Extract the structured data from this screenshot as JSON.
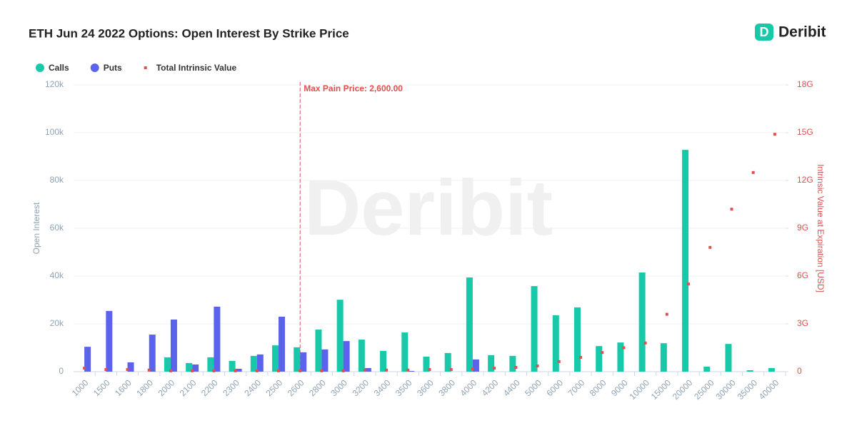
{
  "brand": "Deribit",
  "chart_data": {
    "type": "bar",
    "title": "ETH Jun 24 2022 Options: Open Interest By Strike Price",
    "y_label": "Open Interest",
    "y2_label": "Intrinsic Value at Expiration [USD]",
    "annotation": {
      "text": "Max Pain Price: 2,600.00",
      "x": 2600
    },
    "categories": [
      "1000",
      "1500",
      "1600",
      "1800",
      "2000",
      "2100",
      "2200",
      "2300",
      "2400",
      "2500",
      "2600",
      "2800",
      "3000",
      "3200",
      "3400",
      "3500",
      "3600",
      "3800",
      "4000",
      "4200",
      "4400",
      "5000",
      "6000",
      "7000",
      "8000",
      "9000",
      "10000",
      "15000",
      "20000",
      "25000",
      "30000",
      "35000",
      "40000"
    ],
    "series": [
      {
        "name": "Calls",
        "color": "#17c9a8",
        "type": "bar",
        "values": [
          0,
          0,
          0,
          0,
          6000,
          3600,
          6000,
          4500,
          6600,
          11000,
          10200,
          17600,
          30100,
          13400,
          8700,
          16400,
          6300,
          7800,
          39400,
          6900,
          6600,
          35800,
          23600,
          26900,
          10700,
          12200,
          41500,
          11900,
          92800,
          2100,
          11600,
          600,
          1500
        ]
      },
      {
        "name": "Puts",
        "color": "#5b63ea",
        "type": "bar",
        "values": [
          10400,
          25400,
          3900,
          15500,
          21800,
          3000,
          27200,
          1200,
          7200,
          23000,
          8100,
          9300,
          12800,
          1500,
          0,
          300,
          0,
          0,
          5100,
          0,
          0,
          0,
          0,
          0,
          0,
          0,
          0,
          0,
          0,
          0,
          0,
          0,
          0
        ]
      },
      {
        "name": "Total Intrinsic Value",
        "color": "#e0504f",
        "type": "scatter",
        "axis": "y2",
        "values": [
          0.22,
          0.13,
          0.13,
          0.1,
          0.05,
          0.05,
          0.05,
          0.05,
          0.05,
          0.05,
          0.05,
          0.05,
          0.05,
          0.1,
          0.1,
          0.1,
          0.13,
          0.13,
          0.18,
          0.22,
          0.27,
          0.36,
          0.63,
          0.9,
          1.2,
          1.5,
          1.8,
          3.6,
          5.5,
          7.8,
          10.2,
          12.5,
          14.9
        ]
      }
    ],
    "ylim": [
      0,
      120000
    ],
    "yticks": [
      0,
      {
        "value": 20000,
        "label": "20k"
      },
      {
        "value": 40000,
        "label": "40k"
      },
      {
        "value": 60000,
        "label": "60k"
      },
      {
        "value": 80000,
        "label": "80k"
      },
      {
        "value": 100000,
        "label": "100k"
      },
      {
        "value": 120000,
        "label": "120k"
      }
    ],
    "y2lim": [
      0,
      18
    ],
    "y2ticks": [
      0,
      {
        "value": 3,
        "label": "3G"
      },
      {
        "value": 6,
        "label": "6G"
      },
      {
        "value": 9,
        "label": "9G"
      },
      {
        "value": 12,
        "label": "12G"
      },
      {
        "value": 15,
        "label": "15G"
      },
      {
        "value": 18,
        "label": "18G"
      }
    ],
    "grid": true
  }
}
